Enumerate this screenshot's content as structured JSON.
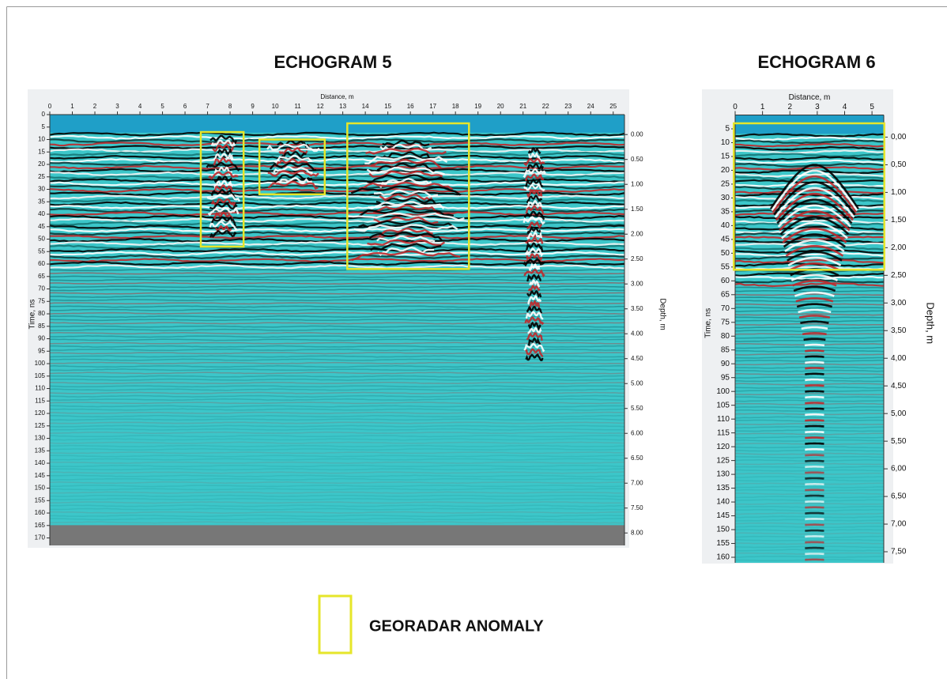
{
  "panels": [
    {
      "title": "ECHOGRAM 5",
      "x_label": "Distance, m",
      "y_label": "Time, ns",
      "y2_label": "Depth, m",
      "xlim": [
        0,
        25.5
      ],
      "ylim": [
        0,
        173
      ],
      "y2lim": [
        -0.4,
        8.25
      ],
      "xticks": [
        0,
        1,
        2,
        3,
        4,
        5,
        6,
        7,
        8,
        9,
        10,
        11,
        12,
        13,
        14,
        15,
        16,
        17,
        18,
        19,
        20,
        21,
        22,
        23,
        24,
        25
      ],
      "yticks": [
        0,
        5,
        10,
        15,
        20,
        25,
        30,
        35,
        40,
        45,
        50,
        55,
        60,
        65,
        70,
        75,
        80,
        85,
        90,
        95,
        100,
        105,
        110,
        115,
        120,
        125,
        130,
        135,
        140,
        145,
        150,
        155,
        160,
        165,
        170
      ],
      "y2ticks": [
        {
          "value": 0,
          "label": "0.00"
        },
        {
          "value": 0.5,
          "label": "0.50"
        },
        {
          "value": 1,
          "label": "1.00"
        },
        {
          "value": 1.5,
          "label": "1.50"
        },
        {
          "value": 2,
          "label": "2.00"
        },
        {
          "value": 2.5,
          "label": "2.50"
        },
        {
          "value": 3,
          "label": "3.00"
        },
        {
          "value": 3.5,
          "label": "3.50"
        },
        {
          "value": 4,
          "label": "4.00"
        },
        {
          "value": 4.5,
          "label": "4.50"
        },
        {
          "value": 5,
          "label": "5.00"
        },
        {
          "value": 5.5,
          "label": "5.50"
        },
        {
          "value": 6,
          "label": "6.00"
        },
        {
          "value": 6.5,
          "label": "6.50"
        },
        {
          "value": 7,
          "label": "7.00"
        },
        {
          "value": 7.5,
          "label": "7.50"
        },
        {
          "value": 8,
          "label": "8.00"
        }
      ],
      "anomalies": [
        {
          "x": [
            6.7,
            8.6
          ],
          "y": [
            7,
            53
          ]
        },
        {
          "x": [
            9.3,
            12.2
          ],
          "y": [
            10,
            32
          ]
        },
        {
          "x": [
            13.2,
            18.6
          ],
          "y": [
            3.5,
            62
          ]
        }
      ]
    },
    {
      "title": "ECHOGRAM 6",
      "x_label": "Distance, m",
      "y_label": "Time, ns",
      "y2_label": "Depth, m",
      "xlim": [
        0,
        5.43
      ],
      "ylim": [
        0,
        162
      ],
      "y2lim": [
        -0.4,
        7.7
      ],
      "xticks": [
        0,
        1,
        2,
        3,
        4,
        5
      ],
      "yticks": [
        5,
        10,
        15,
        20,
        25,
        30,
        35,
        40,
        45,
        50,
        55,
        60,
        65,
        70,
        75,
        80,
        85,
        90,
        95,
        100,
        105,
        110,
        115,
        120,
        125,
        130,
        135,
        140,
        145,
        150,
        155,
        160
      ],
      "y2ticks": [
        {
          "value": 0,
          "label": "0,00"
        },
        {
          "value": 0.5,
          "label": "0,50"
        },
        {
          "value": 1,
          "label": "1,00"
        },
        {
          "value": 1.5,
          "label": "1,50"
        },
        {
          "value": 2,
          "label": "2,00"
        },
        {
          "value": 2.5,
          "label": "2,50"
        },
        {
          "value": 3,
          "label": "3,00"
        },
        {
          "value": 3.5,
          "label": "3,50"
        },
        {
          "value": 4,
          "label": "4,00"
        },
        {
          "value": 4.5,
          "label": "4,50"
        },
        {
          "value": 5,
          "label": "5,00"
        },
        {
          "value": 5.5,
          "label": "5,50"
        },
        {
          "value": 6,
          "label": "6,00"
        },
        {
          "value": 6.5,
          "label": "6,50"
        },
        {
          "value": 7,
          "label": "7,00"
        },
        {
          "value": 7.5,
          "label": "7,50"
        }
      ],
      "anomalies": [
        {
          "x": [
            -0.05,
            5.45
          ],
          "y": [
            3,
            56
          ]
        }
      ]
    }
  ],
  "legend": {
    "label": "GEORADAR ANOMALY"
  }
}
